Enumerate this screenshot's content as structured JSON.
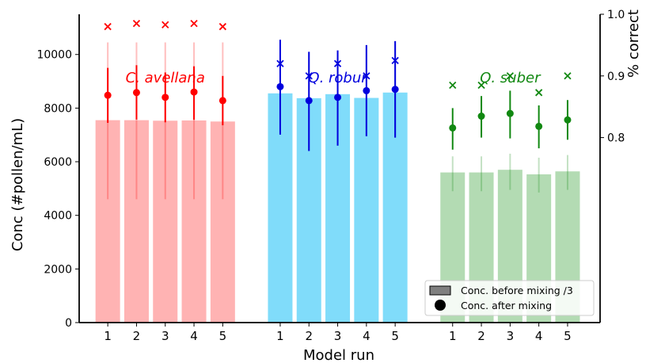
{
  "chart_data": {
    "type": "bar",
    "xlabel": "Model run",
    "ylabel": "Conc (#pollen/mL)",
    "y2label": "% correct",
    "ylim": [
      0,
      11500
    ],
    "yticks": [
      0,
      2000,
      4000,
      6000,
      8000,
      10000
    ],
    "y2lim": [
      0.5,
      1.0
    ],
    "y2ticks": [
      0.8,
      0.9,
      1.0
    ],
    "grid": false,
    "legend_position": "bottom-right",
    "legend": [
      {
        "label": "Conc. before mixing /3",
        "marker": "bar"
      },
      {
        "label": "Conc. after mixing",
        "marker": "point"
      }
    ],
    "groups": [
      {
        "name": "C. avellana",
        "color": "#ff0000",
        "bar_color": "#ffb3b3",
        "categories": [
          "1",
          "2",
          "3",
          "4",
          "5"
        ],
        "bar_values": [
          7550,
          7550,
          7530,
          7540,
          7500
        ],
        "bar_err_low": [
          4600,
          4600,
          4600,
          4600,
          4600
        ],
        "bar_err_high": [
          10450,
          10450,
          10450,
          10450,
          10450
        ],
        "point_values": [
          8480,
          8580,
          8400,
          8600,
          8280
        ],
        "point_err_low": [
          7450,
          7570,
          7470,
          7560,
          7360
        ],
        "point_err_high": [
          9500,
          9600,
          9330,
          9560,
          9200
        ],
        "percent_correct": [
          0.98,
          0.985,
          0.983,
          0.985,
          0.98
        ]
      },
      {
        "name": "Q. robur",
        "color": "#0000dd",
        "bar_color": "#80dcfa",
        "categories": [
          "1",
          "2",
          "3",
          "4",
          "5"
        ],
        "bar_values": [
          8550,
          8370,
          8520,
          8380,
          8580
        ],
        "bar_err_low": [
          7010,
          6400,
          6600,
          6950,
          6900
        ],
        "bar_err_high": [
          10550,
          10100,
          10150,
          10350,
          10500
        ],
        "point_values": [
          8800,
          8280,
          8400,
          8650,
          8700
        ],
        "point_err_low": [
          7010,
          6400,
          6600,
          6950,
          6900
        ],
        "point_err_high": [
          10550,
          10100,
          10150,
          10350,
          10500
        ],
        "percent_correct": [
          0.92,
          0.9,
          0.92,
          0.9,
          0.925
        ]
      },
      {
        "name": "Q. suber",
        "color": "#118811",
        "bar_color": "#b3dbb3",
        "categories": [
          "1",
          "2",
          "3",
          "4",
          "5"
        ],
        "bar_values": [
          5600,
          5600,
          5700,
          5530,
          5640
        ],
        "bar_err_low": [
          4900,
          4900,
          4950,
          4850,
          4950
        ],
        "bar_err_high": [
          6200,
          6200,
          6300,
          6150,
          6250
        ],
        "point_values": [
          7260,
          7700,
          7800,
          7320,
          7560
        ],
        "point_err_low": [
          6450,
          6900,
          6870,
          6500,
          6820
        ],
        "point_err_high": [
          8000,
          8450,
          8650,
          8100,
          8300
        ],
        "percent_correct": [
          0.885,
          0.885,
          0.9,
          0.873,
          0.9
        ]
      }
    ]
  }
}
